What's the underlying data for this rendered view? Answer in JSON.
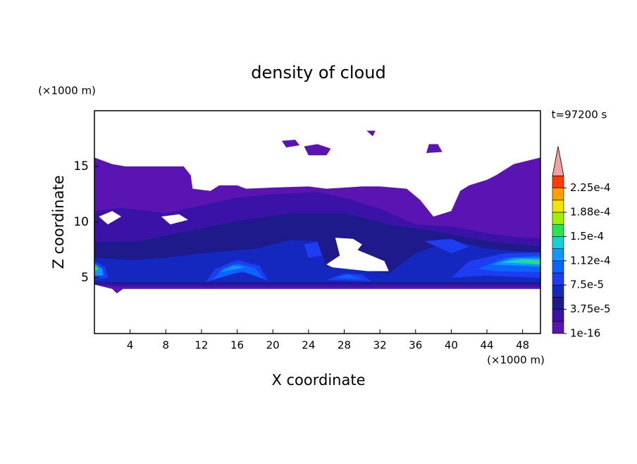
{
  "chart_data": {
    "type": "contour",
    "title": "density of cloud",
    "x_label": "X coordinate",
    "y_label": "Z coordinate",
    "x_unit": "(×1000 m)",
    "y_unit": "(×1000 m)",
    "annotation": "t=97200 s",
    "xlim": [
      0,
      50
    ],
    "xticks": [
      4,
      8,
      12,
      16,
      20,
      24,
      28,
      32,
      36,
      40,
      44,
      48
    ],
    "ylim": [
      0,
      20
    ],
    "yticks": [
      5,
      10,
      15
    ],
    "colorbar": {
      "colors": [
        "#5a14b4",
        "#3a12a8",
        "#1e1a8c",
        "#1428c0",
        "#1e3cf0",
        "#0a64ff",
        "#1496ff",
        "#14d2d2",
        "#28e650",
        "#a0f000",
        "#f0e600",
        "#ffa000",
        "#ff3c00"
      ],
      "extend_color": "#f4a0a0",
      "ticks": [
        {
          "value": 1e-16,
          "label": "1e-16"
        },
        {
          "value": 3.75e-05,
          "label": "3.75e-5"
        },
        {
          "value": 7.5e-05,
          "label": "7.5e-5"
        },
        {
          "value": 0.000112,
          "label": "1.12e-4"
        },
        {
          "value": 0.00015,
          "label": "1.5e-4"
        },
        {
          "value": 0.000188,
          "label": "1.88e-4"
        },
        {
          "value": 0.000225,
          "label": "2.25e-4"
        }
      ]
    }
  }
}
